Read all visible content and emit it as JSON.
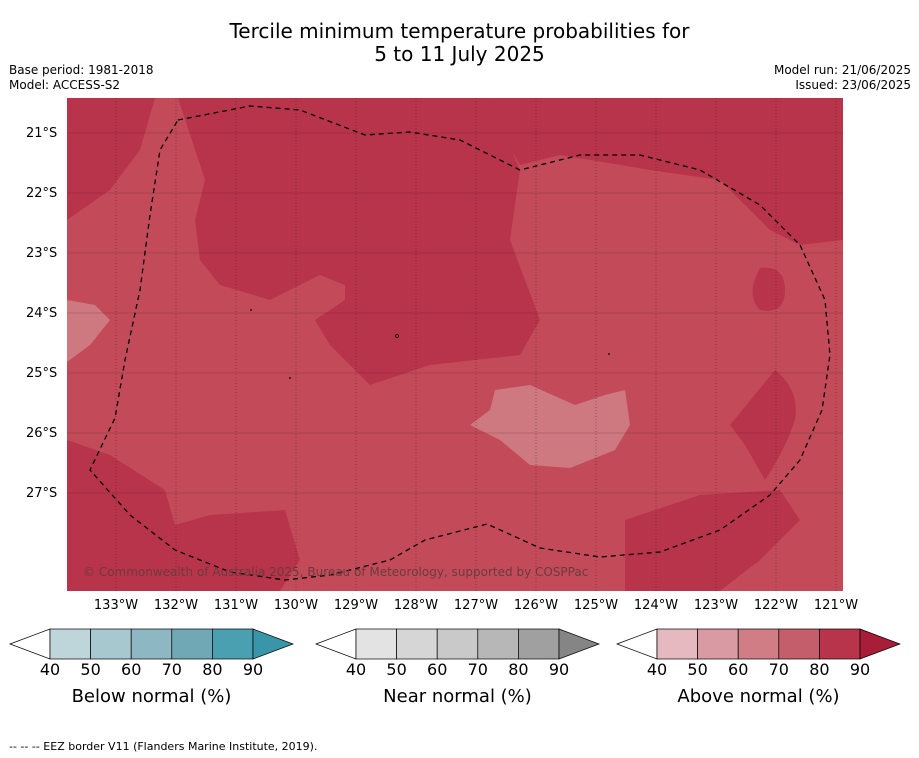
{
  "title_line1": "Tercile minimum temperature probabilities for",
  "title_line2": "5 to 11 July 2025",
  "base_period": "Base period: 1981-2018",
  "model": "Model: ACCESS-S2",
  "model_run": "Model run: 21/06/2025",
  "issued": "Issued: 23/06/2025",
  "copyright": "© Commonwealth of Australia 2025, Bureau of Meteorology, supported by COSPPac",
  "footer": "--  --  -- EEZ border V11 (Flanders Marine Institute, 2019).",
  "lat_labels": [
    "21°S",
    "22°S",
    "23°S",
    "24°S",
    "25°S",
    "26°S",
    "27°S"
  ],
  "lon_labels": [
    "133°W",
    "132°W",
    "131°W",
    "130°W",
    "129°W",
    "128°W",
    "127°W",
    "126°W",
    "125°W",
    "124°W",
    "123°W",
    "122°W",
    "121°W"
  ],
  "colorbars": [
    {
      "label": "Below normal (%)",
      "ticks": [
        "40",
        "50",
        "60",
        "70",
        "80",
        "90"
      ],
      "colors": [
        "#ffffff",
        "#bed5da",
        "#a8c8cf",
        "#8db7c2",
        "#70a8b6",
        "#4aa0b0",
        "#3896a8"
      ]
    },
    {
      "label": "Near normal (%)",
      "ticks": [
        "40",
        "50",
        "60",
        "70",
        "80",
        "90"
      ],
      "colors": [
        "#ffffff",
        "#e3e3e3",
        "#d6d6d6",
        "#c9c9c9",
        "#b7b7b7",
        "#a0a0a0",
        "#858585"
      ]
    },
    {
      "label": "Above normal (%)",
      "ticks": [
        "40",
        "50",
        "60",
        "70",
        "80",
        "90"
      ],
      "colors": [
        "#ffffff",
        "#e5b9bf",
        "#da9aa3",
        "#d07d86",
        "#c45e6b",
        "#b8344a",
        "#a81d38"
      ]
    }
  ],
  "map_colors": {
    "base": "#c34b59",
    "dark": "#b8344a",
    "light": "#ce7880"
  }
}
